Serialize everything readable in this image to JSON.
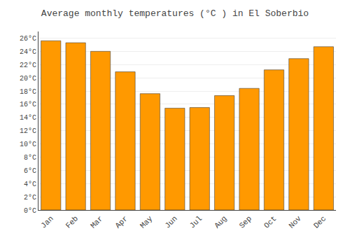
{
  "chart_data": {
    "type": "bar",
    "title": "Average monthly temperatures (°C ) in El Soberbio",
    "categories": [
      "Jan",
      "Feb",
      "Mar",
      "Apr",
      "May",
      "Jun",
      "Jul",
      "Aug",
      "Sep",
      "Oct",
      "Nov",
      "Dec"
    ],
    "values": [
      25.6,
      25.3,
      24.0,
      20.9,
      17.6,
      15.4,
      15.5,
      17.3,
      18.4,
      21.2,
      22.9,
      24.7
    ],
    "color": "#FF9900",
    "ylim": [
      0,
      27
    ],
    "yticks": [
      {
        "value": 0,
        "label": "0°C"
      },
      {
        "value": 2,
        "label": "2°C"
      },
      {
        "value": 4,
        "label": "4°C"
      },
      {
        "value": 6,
        "label": "6°C"
      },
      {
        "value": 8,
        "label": "8°C"
      },
      {
        "value": 10,
        "label": "10°C"
      },
      {
        "value": 12,
        "label": "12°C"
      },
      {
        "value": 14,
        "label": "14°C"
      },
      {
        "value": 16,
        "label": "16°C"
      },
      {
        "value": 18,
        "label": "18°C"
      },
      {
        "value": 20,
        "label": "20°C"
      },
      {
        "value": 22,
        "label": "22°C"
      },
      {
        "value": 24,
        "label": "24°C"
      },
      {
        "value": 26,
        "label": "26°C"
      }
    ],
    "grid": true
  }
}
